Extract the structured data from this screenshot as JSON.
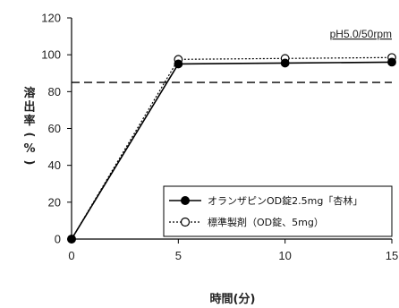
{
  "chart_data": {
    "type": "line",
    "title": "",
    "annotation": "pH5.0/50rpm",
    "xlabel": "時間(分)",
    "ylabel": "溶出率(%)",
    "xlim": [
      0,
      15
    ],
    "ylim": [
      0,
      120
    ],
    "x_ticks": [
      0,
      5,
      10,
      15
    ],
    "y_ticks": [
      0,
      20,
      40,
      60,
      80,
      100,
      120
    ],
    "reference_line": {
      "y": 85,
      "style": "dashed"
    },
    "legend_position": "lower-right",
    "series": [
      {
        "name": "オランザピンOD錠2.5mg「杏林」",
        "marker": "filled-circle",
        "line_style": "solid",
        "color": "#000000",
        "x": [
          0,
          5,
          10,
          15
        ],
        "y": [
          0,
          95,
          95.5,
          96
        ]
      },
      {
        "name": "標準製剤（OD錠、5mg）",
        "marker": "open-circle",
        "line_style": "dotted",
        "color": "#000000",
        "x": [
          0,
          5,
          10,
          15
        ],
        "y": [
          0,
          97.5,
          98,
          98.5
        ]
      }
    ]
  }
}
